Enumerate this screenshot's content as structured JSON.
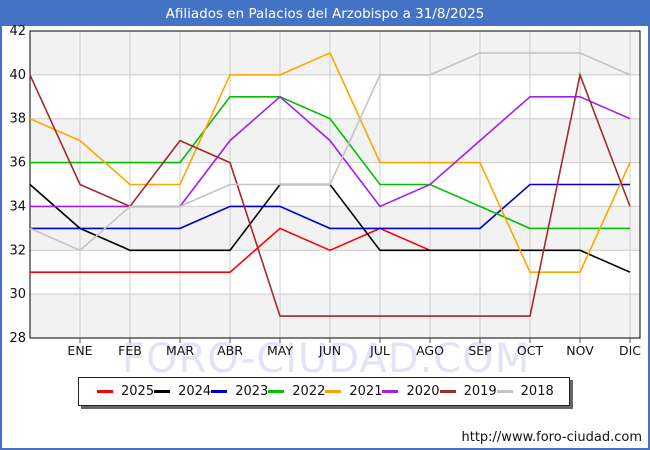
{
  "header": {
    "title": "Afiliados en Palacios del Arzobispo a 31/8/2025"
  },
  "watermark": "FORO-CIUDAD.COM",
  "footer": {
    "url": "http://www.foro-ciudad.com"
  },
  "chart_data": {
    "type": "line",
    "title": "Afiliados en Palacios del Arzobispo a 31/8/2025",
    "categories": [
      "ENE",
      "FEB",
      "MAR",
      "ABR",
      "MAY",
      "JUN",
      "JUL",
      "AGO",
      "SEP",
      "OCT",
      "NOV",
      "DIC"
    ],
    "first_point_note": "each series begins one slot left of ENE with the previous year's DIC value",
    "ylim": [
      28,
      42
    ],
    "yticks": [
      42,
      40,
      38,
      36,
      34,
      32,
      30,
      28
    ],
    "grid": true,
    "legend_position": "bottom",
    "colors": {
      "frame_accent": "#4472c4",
      "band_gray": "#f2f2f2",
      "gridline": "#cccccc",
      "axis": "#000000",
      "tick": "#555555"
    },
    "series": [
      {
        "name": "2025",
        "color": "#ff0000",
        "values": [
          31,
          31,
          31,
          31,
          31,
          33,
          32,
          33,
          32
        ]
      },
      {
        "name": "2024",
        "color": "#000000",
        "values": [
          35,
          33,
          32,
          32,
          32,
          35,
          35,
          32,
          32,
          32,
          32,
          32,
          31
        ]
      },
      {
        "name": "2023",
        "color": "#0000cd",
        "values": [
          33,
          33,
          33,
          33,
          34,
          34,
          33,
          33,
          33,
          33,
          35,
          35,
          35
        ]
      },
      {
        "name": "2022",
        "color": "#00c000",
        "values": [
          36,
          36,
          36,
          36,
          39,
          39,
          38,
          35,
          35,
          34,
          33,
          33,
          33
        ]
      },
      {
        "name": "2021",
        "color": "#ffa500",
        "values": [
          38,
          37,
          35,
          35,
          40,
          40,
          41,
          36,
          36,
          36,
          31,
          31,
          36
        ]
      },
      {
        "name": "2020",
        "color": "#a020f0",
        "values": [
          34,
          34,
          34,
          34,
          37,
          39,
          37,
          34,
          35,
          37,
          39,
          39,
          38
        ]
      },
      {
        "name": "2019",
        "color": "#a52a2a",
        "values": [
          40,
          35,
          34,
          37,
          36,
          29,
          29,
          29,
          29,
          29,
          29,
          40,
          34
        ]
      },
      {
        "name": "2018",
        "color": "#c4c4c4",
        "values": [
          33,
          32,
          34,
          34,
          35,
          35,
          35,
          40,
          40,
          41,
          41,
          41,
          40
        ]
      }
    ]
  }
}
